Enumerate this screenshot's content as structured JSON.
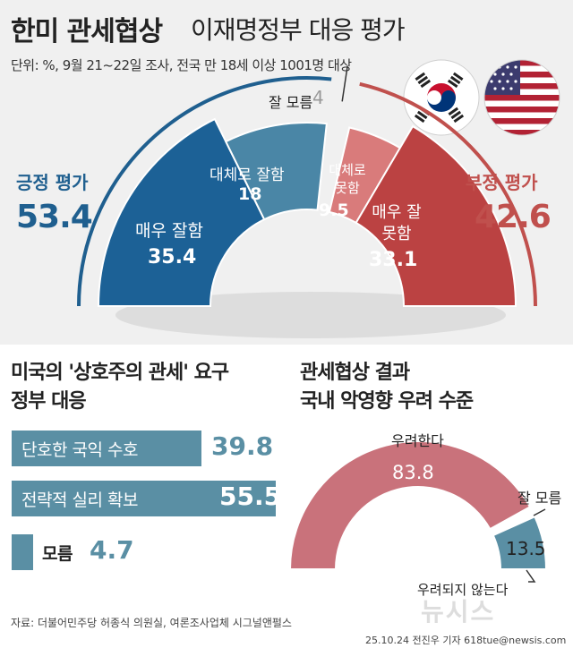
{
  "header": {
    "title_main": "한미 관세협상",
    "title_sub": "이재명정부 대응 평가",
    "unit_note": "단위: %, 9월 21~22일 조사, 전국 만 18세 이상 1001명 대상"
  },
  "flags": [
    "south-korea-flag",
    "usa-flag"
  ],
  "colors": {
    "positive": "#1f5f8f",
    "positive_dark": "#1c6196",
    "positive_light": "#4a86a6",
    "negative": "#c0504d",
    "negative_dark": "#bb4242",
    "negative_light": "#d97b7b",
    "bar": "#5a8fa4",
    "concern": "#c9727b",
    "not_concern": "#5a8fa4"
  },
  "chart_data": [
    {
      "type": "pie",
      "shape": "half-donut",
      "summary": {
        "positive_label": "긍정 평가",
        "positive_value": "53.4",
        "negative_label": "부정 평가",
        "negative_value": "42.6"
      },
      "slices": [
        {
          "label": "매우 잘함",
          "value": 35.4,
          "value_text": "35.4",
          "group": "positive"
        },
        {
          "label": "대체로 잘함",
          "value": 18,
          "value_text": "18",
          "group": "positive"
        },
        {
          "label": "잘 모름",
          "value": 4,
          "value_text": "4",
          "group": "unknown"
        },
        {
          "label": "대체로 못함",
          "value": 9.5,
          "value_text": "9.5",
          "group": "negative"
        },
        {
          "label": "매우 잘못함",
          "value": 33.1,
          "value_text": "33.1",
          "group": "negative"
        }
      ]
    },
    {
      "type": "bar",
      "orientation": "horizontal",
      "title_lines": [
        "미국의 '상호주의 관세' 요구",
        "정부 대응"
      ],
      "categories": [
        "단호한 국익 수호",
        "전략적 실리 확보",
        "모름"
      ],
      "values": [
        39.8,
        55.5,
        4.7
      ],
      "value_texts": [
        "39.8",
        "55.5",
        "4.7"
      ]
    },
    {
      "type": "pie",
      "shape": "half-donut",
      "title_lines": [
        "관세협상 결과",
        "국내 악영향 우려 수준"
      ],
      "slices": [
        {
          "label": "우려한다",
          "value": 83.8,
          "value_text": "83.8"
        },
        {
          "label": "잘 모름",
          "value": 2.7
        },
        {
          "label": "우려되지 않는다",
          "value": 13.5,
          "value_text": "13.5"
        }
      ]
    }
  ],
  "footer": {
    "source": "자료: 더불어민주당 허종식 의원실, 여론조사업체 시그널앤펄스",
    "credit": "25.10.24 전진우 기자 618tue@newsis.com",
    "watermark": "뉴시스"
  }
}
